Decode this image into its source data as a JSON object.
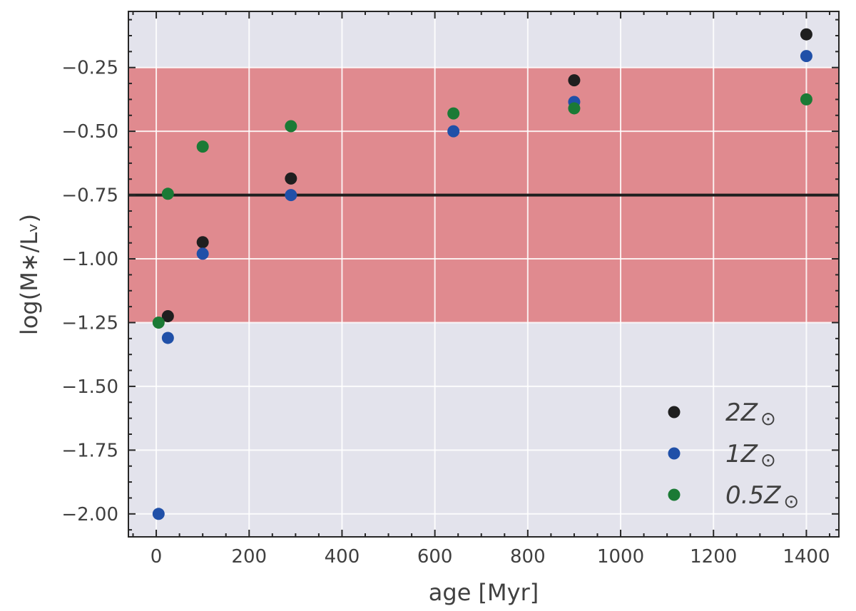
{
  "chart_data": {
    "type": "scatter",
    "xlabel": "age [Myr]",
    "ylabel": "log(M∗/Lᵥ)",
    "xlim": [
      -60,
      1470
    ],
    "ylim": [
      -2.09,
      -0.03
    ],
    "x_ticks": [
      0,
      200,
      400,
      600,
      800,
      1000,
      1200,
      1400
    ],
    "x_tick_labels": [
      "0",
      "200",
      "400",
      "600",
      "800",
      "1000",
      "1200",
      "1400"
    ],
    "y_ticks": [
      -2.0,
      -1.75,
      -1.5,
      -1.25,
      -1.0,
      -0.75,
      -0.5,
      -0.25
    ],
    "y_tick_labels": [
      "−2.00",
      "−1.75",
      "−1.50",
      "−1.25",
      "−1.00",
      "−0.75",
      "−0.50",
      "−0.25"
    ],
    "grid": true,
    "shaded_band": {
      "y_from": -1.25,
      "y_to": -0.25,
      "color": "#e08a8f"
    },
    "reference_line": {
      "y": -0.75,
      "color": "#1f1f1f"
    },
    "legend_position": "lower-right",
    "series": [
      {
        "name": "2Z",
        "label_main": "2Z",
        "color": "#1f1f1f",
        "x": [
          25,
          100,
          290,
          900,
          1400
        ],
        "y": [
          -1.225,
          -0.935,
          -0.685,
          -0.3,
          -0.12
        ]
      },
      {
        "name": "1Z",
        "label_main": "1Z",
        "color": "#2050a8",
        "x": [
          5,
          25,
          100,
          290,
          640,
          900,
          1400
        ],
        "y": [
          -2.0,
          -1.31,
          -0.98,
          -0.75,
          -0.5,
          -0.385,
          -0.205
        ]
      },
      {
        "name": "0.5Z",
        "label_main": "0.5Z",
        "color": "#1b7a35",
        "x": [
          5,
          25,
          100,
          290,
          640,
          900,
          1400
        ],
        "y": [
          -1.25,
          -0.745,
          -0.56,
          -0.48,
          -0.43,
          -0.41,
          -0.375
        ]
      }
    ],
    "legend_symbol": "⊙"
  },
  "colors": {
    "plot_background": "#e3e3ec",
    "grid": "#ffffff",
    "axis": "#262626"
  }
}
